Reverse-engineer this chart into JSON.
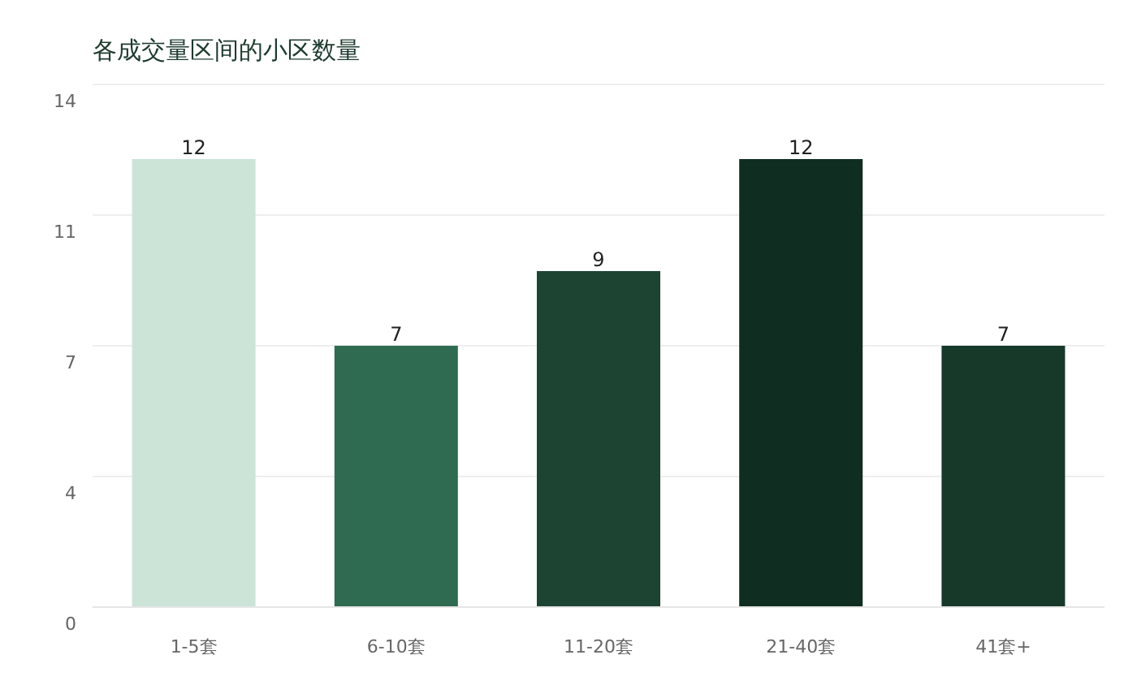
{
  "chart_data": {
    "type": "bar",
    "title": "各成交量区间的小区数量",
    "categories": [
      "1-5套",
      "6-10套",
      "11-20套",
      "21-40套",
      "41套+"
    ],
    "values": [
      12,
      7,
      9,
      12,
      7
    ],
    "colors": [
      "#cce3d8",
      "#2e6b50",
      "#1d4433",
      "#0f2d21",
      "#17392a"
    ],
    "ylim": [
      0,
      14
    ],
    "yticks": [
      0,
      {
        "value": 3.5,
        "label": "4"
      },
      7,
      {
        "value": 10.5,
        "label": "11"
      },
      14
    ],
    "grid": "y",
    "data_labels": true
  }
}
